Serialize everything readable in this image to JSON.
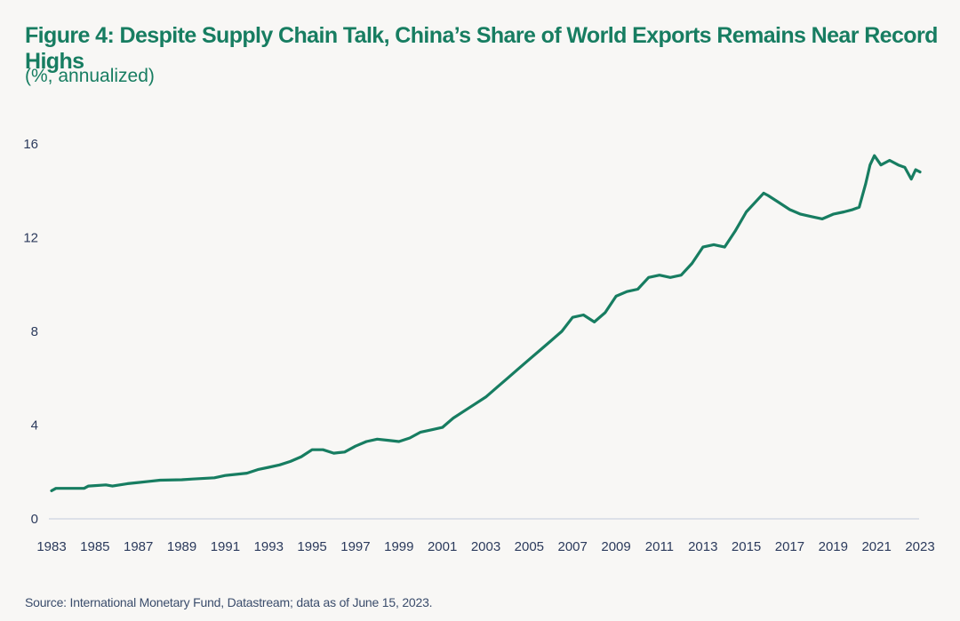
{
  "header": {
    "title": "Figure 4: Despite Supply Chain Talk, China’s Share of World Exports Remains Near Record Highs",
    "subtitle": "(%, annualized)"
  },
  "footer": {
    "source": "Source: International Monetary Fund, Datastream; data as of June 15, 2023."
  },
  "colors": {
    "line": "#177d61",
    "title": "#177d61",
    "axis_text": "#2b3a5c",
    "baseline": "#dde1e8",
    "background": "#f8f7f5"
  },
  "chart_data": {
    "type": "line",
    "title": "Figure 4: Despite Supply Chain Talk, China’s Share of World Exports Remains Near Record Highs",
    "subtitle": "(%, annualized)",
    "xlabel": "",
    "ylabel": "%",
    "xlim": [
      1983,
      2023
    ],
    "ylim": [
      0,
      16
    ],
    "yticks": [
      0,
      4,
      8,
      12,
      16
    ],
    "xticks": [
      "1983",
      "1985",
      "1987",
      "1989",
      "1991",
      "1993",
      "1995",
      "1997",
      "1999",
      "2001",
      "2003",
      "2005",
      "2007",
      "2009",
      "2011",
      "2013",
      "2015",
      "2017",
      "2019",
      "2021",
      "2023"
    ],
    "grid": false,
    "legend": "none",
    "series": [
      {
        "name": "China's share of world exports",
        "x": [
          1983.0,
          1983.2,
          1984.5,
          1984.7,
          1985.5,
          1985.8,
          1986.5,
          1987.0,
          1987.5,
          1988.0,
          1989.0,
          1989.5,
          1990.5,
          1991.0,
          1992.0,
          1992.5,
          1993.0,
          1993.5,
          1994.0,
          1994.5,
          1995.0,
          1995.5,
          1996.0,
          1996.5,
          1997.0,
          1997.5,
          1998.0,
          1998.5,
          1999.0,
          1999.5,
          2000.0,
          2000.5,
          2001.0,
          2001.5,
          2002.0,
          2002.5,
          2003.0,
          2003.5,
          2004.0,
          2004.5,
          2005.0,
          2005.5,
          2006.0,
          2006.5,
          2007.0,
          2007.5,
          2008.0,
          2008.5,
          2009.0,
          2009.5,
          2010.0,
          2010.5,
          2011.0,
          2011.5,
          2012.0,
          2012.5,
          2013.0,
          2013.5,
          2014.0,
          2014.5,
          2015.0,
          2015.5,
          2015.8,
          2016.0,
          2016.5,
          2017.0,
          2017.5,
          2018.0,
          2018.5,
          2019.0,
          2019.5,
          2019.9,
          2020.2,
          2020.5,
          2020.7,
          2020.9,
          2021.2,
          2021.6,
          2022.0,
          2022.3,
          2022.6,
          2022.8,
          2023.0
        ],
        "values": [
          1.2,
          1.3,
          1.3,
          1.4,
          1.45,
          1.4,
          1.5,
          1.55,
          1.6,
          1.65,
          1.67,
          1.7,
          1.75,
          1.85,
          1.95,
          2.1,
          2.2,
          2.3,
          2.45,
          2.65,
          2.95,
          2.95,
          2.8,
          2.85,
          3.1,
          3.3,
          3.4,
          3.35,
          3.3,
          3.45,
          3.7,
          3.8,
          3.9,
          4.3,
          4.6,
          4.9,
          5.2,
          5.6,
          6.0,
          6.4,
          6.8,
          7.2,
          7.6,
          8.0,
          8.6,
          8.7,
          8.4,
          8.8,
          9.5,
          9.7,
          9.8,
          10.3,
          10.4,
          10.3,
          10.4,
          10.9,
          11.6,
          11.7,
          11.6,
          12.3,
          13.1,
          13.6,
          13.9,
          13.8,
          13.5,
          13.2,
          13.0,
          12.9,
          12.8,
          13.0,
          13.1,
          13.2,
          13.3,
          14.3,
          15.1,
          15.5,
          15.1,
          15.3,
          15.1,
          15.0,
          14.5,
          14.9,
          14.8
        ]
      }
    ]
  }
}
